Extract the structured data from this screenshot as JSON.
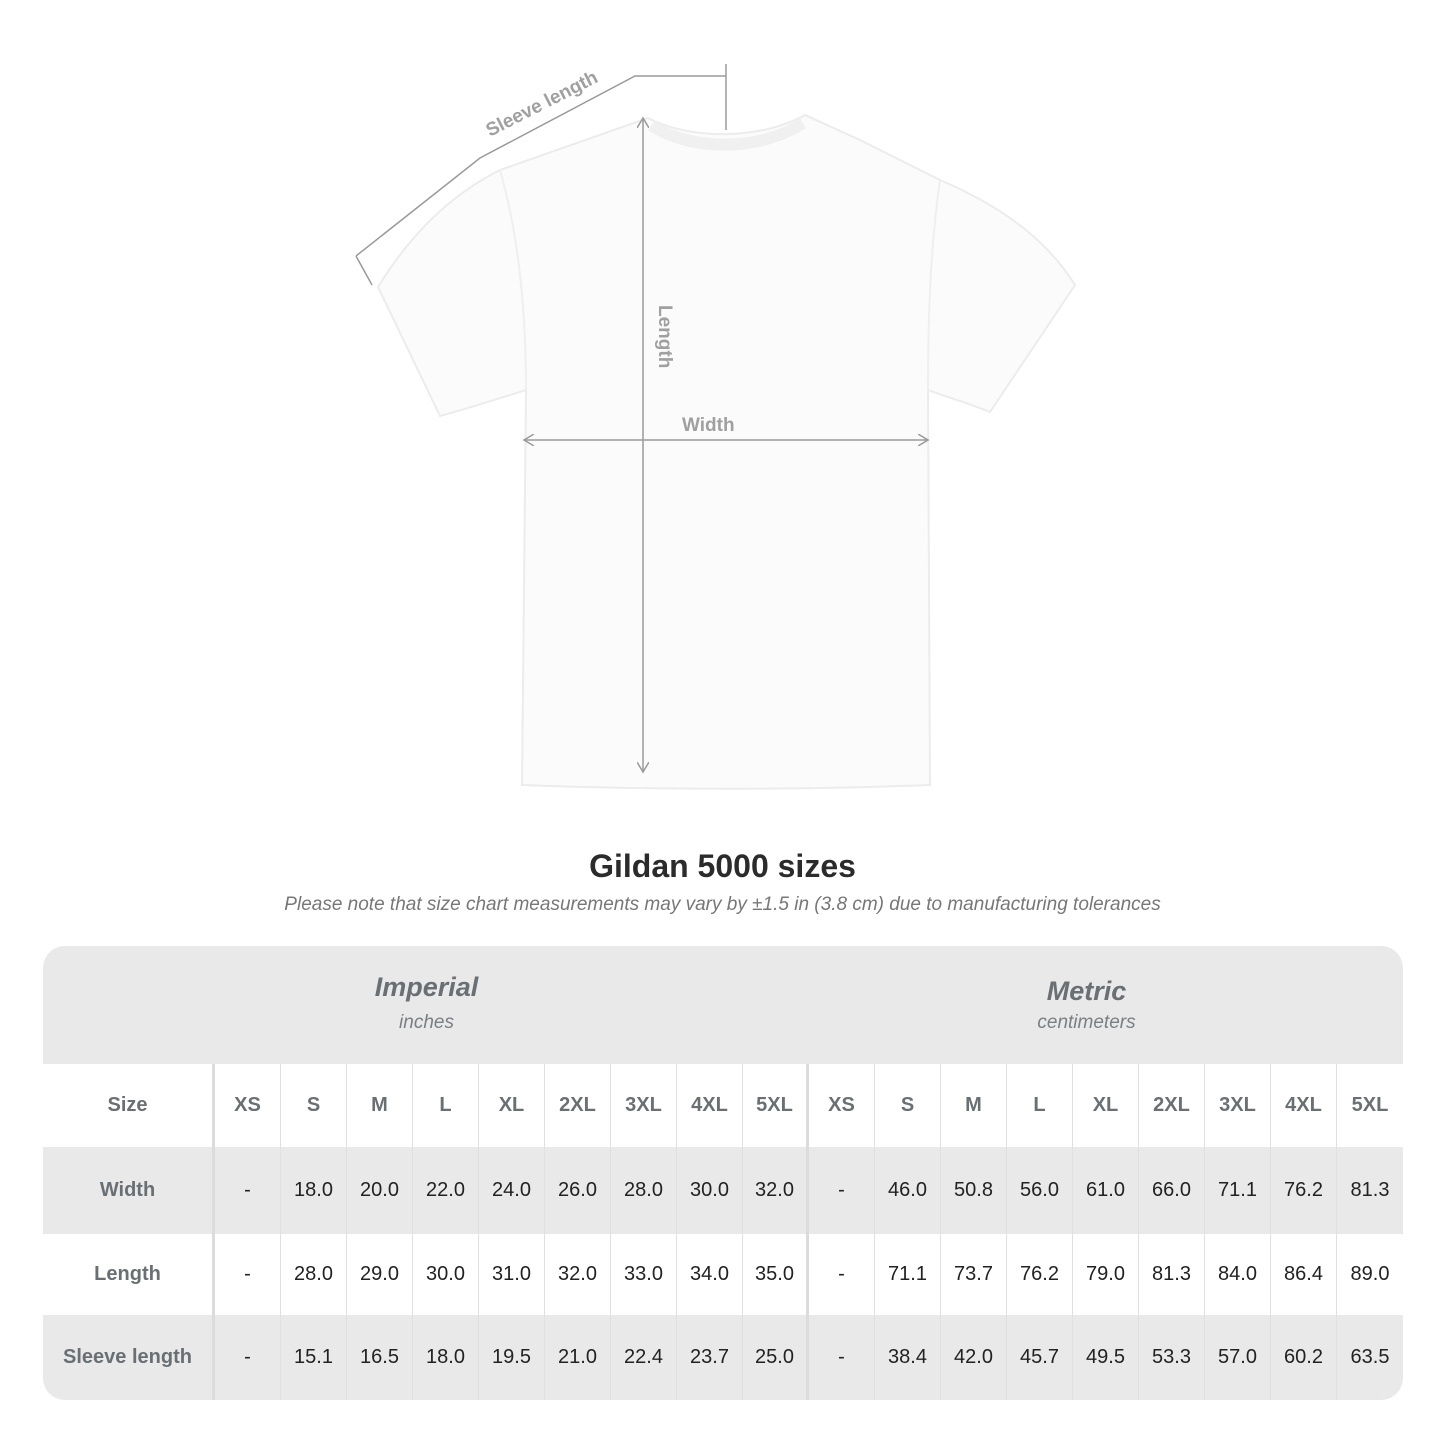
{
  "diagram": {
    "labels": {
      "sleeve": "Sleeve length",
      "length": "Length",
      "width": "Width"
    },
    "line_color": "#9a9a9a"
  },
  "header": {
    "title": "Gildan 5000 sizes",
    "note": "Please note that size chart measurements may vary by ±1.5 in (3.8 cm) due to manufacturing tolerances"
  },
  "table": {
    "imperial": {
      "title": "Imperial",
      "unit": "inches"
    },
    "metric": {
      "title": "Metric",
      "unit": "centimeters"
    },
    "size_label": "Size",
    "sizes": [
      "XS",
      "S",
      "M",
      "L",
      "XL",
      "2XL",
      "3XL",
      "4XL",
      "5XL"
    ],
    "rows": [
      {
        "label": "Width",
        "imperial": [
          "-",
          "18.0",
          "20.0",
          "22.0",
          "24.0",
          "26.0",
          "28.0",
          "30.0",
          "32.0"
        ],
        "metric": [
          "-",
          "46.0",
          "50.8",
          "56.0",
          "61.0",
          "66.0",
          "71.1",
          "76.2",
          "81.3"
        ]
      },
      {
        "label": "Length",
        "imperial": [
          "-",
          "28.0",
          "29.0",
          "30.0",
          "31.0",
          "32.0",
          "33.0",
          "34.0",
          "35.0"
        ],
        "metric": [
          "-",
          "71.1",
          "73.7",
          "76.2",
          "79.0",
          "81.3",
          "84.0",
          "86.4",
          "89.0"
        ]
      },
      {
        "label": "Sleeve length",
        "imperial": [
          "-",
          "15.1",
          "16.5",
          "18.0",
          "19.5",
          "21.0",
          "22.4",
          "23.7",
          "25.0"
        ],
        "metric": [
          "-",
          "38.4",
          "42.0",
          "45.7",
          "49.5",
          "53.3",
          "57.0",
          "60.2",
          "63.5"
        ]
      }
    ],
    "colors": {
      "header_bg": "#e9e9ea",
      "label_text": "#6a6f73"
    }
  }
}
